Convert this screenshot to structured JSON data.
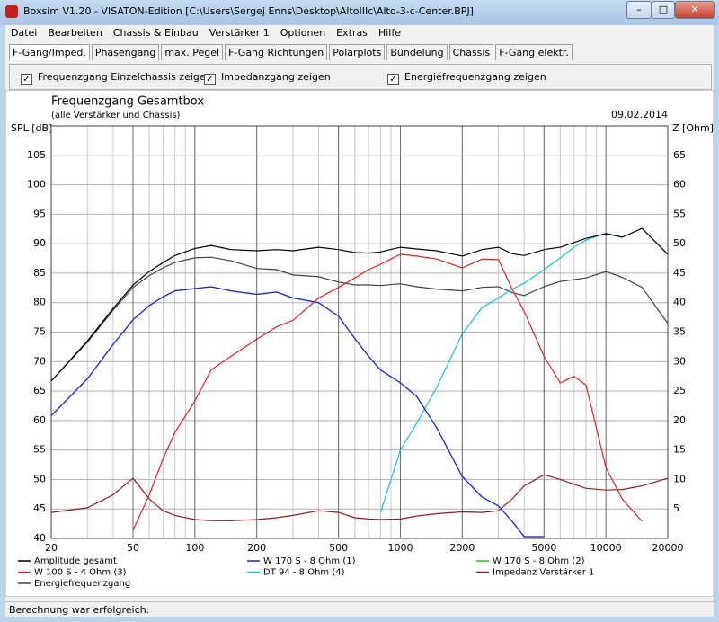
{
  "window": {
    "title": "Boxsim V1.20 - VISATON-Edition [C:\\Users\\Sergej Enns\\Desktop\\AltoIIIc\\Alto-3-c-Center.BPJ]"
  },
  "menu": [
    "Datei",
    "Bearbeiten",
    "Chassis & Einbau",
    "Verstärker 1",
    "Optionen",
    "Extras",
    "Hilfe"
  ],
  "tabs": [
    "F-Gang/Imped.",
    "Phasengang",
    "max. Pegel",
    "F-Gang Richtungen",
    "Polarplots",
    "Bündelung",
    "Chassis",
    "F-Gang elektr."
  ],
  "options": [
    "Frequenzgang Einzelchassis zeigen",
    "Impedanzgang zeigen",
    "Energiefrequenzgang zeigen"
  ],
  "status": "Berechnung war erfolgreich.",
  "chart_data": {
    "type": "line",
    "title": "Frequenzgang Gesamtbox",
    "subtitle": "(alle Verstärker und Chassis)",
    "date": "09.02.2014",
    "ylabel": "SPL [dB]",
    "y2label": "Z [Ohm]",
    "log_x": true,
    "grid": true,
    "x": [
      20,
      30,
      40,
      50,
      60,
      70,
      80,
      100,
      120,
      150,
      200,
      250,
      300,
      400,
      500,
      600,
      700,
      800,
      1000,
      1200,
      1500,
      2000,
      2500,
      3000,
      3500,
      4000,
      5000,
      6000,
      7000,
      8000,
      10000,
      12000,
      15000,
      20000
    ],
    "xlim": [
      20,
      20000
    ],
    "xticks": [
      20,
      50,
      100,
      200,
      500,
      1000,
      2000,
      5000,
      10000,
      20000
    ],
    "ylim": [
      40,
      110
    ],
    "yticks": [
      40,
      45,
      50,
      55,
      60,
      65,
      70,
      75,
      80,
      85,
      90,
      95,
      100,
      105
    ],
    "y2lim": [
      0,
      70
    ],
    "y2ticks": [
      5,
      10,
      15,
      20,
      25,
      30,
      35,
      40,
      45,
      50,
      55,
      60,
      65
    ],
    "series": [
      {
        "name": "Amplitude gesamt",
        "color": "#000000",
        "values": [
          66.7,
          73.5,
          79,
          83,
          85.3,
          86.8,
          88,
          89.2,
          89.7,
          89,
          88.8,
          89,
          88.8,
          89.4,
          89,
          88.5,
          88.4,
          88.6,
          89.4,
          89.1,
          88.8,
          87.9,
          89,
          89.4,
          88.3,
          88,
          89,
          89.4,
          90.2,
          90.9,
          91.7,
          91.1,
          92.6,
          88.2
        ]
      },
      {
        "name": "W 170 S - 8 Ohm (1)",
        "color": "#2020e0",
        "values": [
          60.8,
          67.1,
          72.9,
          77.1,
          79.5,
          81,
          82,
          82.4,
          82.7,
          82,
          81.4,
          81.8,
          80.8,
          80,
          77.7,
          73.9,
          70.9,
          68.6,
          66.4,
          64.1,
          58.8,
          50.5,
          47,
          45.5,
          42.9,
          40.3,
          40.3,
          null,
          null,
          null,
          null,
          null,
          null,
          null
        ]
      },
      {
        "name": "W 170 S - 8 Ohm (2)",
        "color": "#20c020",
        "values": [
          60.8,
          67.1,
          72.9,
          77.1,
          79.5,
          81,
          82,
          82.4,
          82.7,
          82,
          81.4,
          81.8,
          80.8,
          80,
          77.7,
          73.9,
          70.9,
          68.6,
          66.4,
          64.1,
          58.8,
          50.5,
          47,
          45.5,
          42.9,
          40.3,
          40.3,
          null,
          null,
          null,
          null,
          null,
          null,
          null
        ]
      },
      {
        "name": "W 100 S - 4 Ohm (3)",
        "color": "#e02020",
        "values": [
          null,
          null,
          null,
          41.4,
          47.4,
          53.5,
          58,
          63.3,
          68.6,
          70.9,
          73.8,
          75.9,
          77,
          80.8,
          82.6,
          84.2,
          85.6,
          86.5,
          88.2,
          87.9,
          87.4,
          85.9,
          87.4,
          87.3,
          82.3,
          78.5,
          70.9,
          66.4,
          67.5,
          66,
          52,
          46.7,
          42.9,
          null
        ]
      },
      {
        "name": "DT 94 - 8 Ohm (4)",
        "color": "#20c0d0",
        "values": [
          null,
          null,
          null,
          null,
          null,
          null,
          null,
          null,
          null,
          null,
          null,
          null,
          null,
          null,
          null,
          null,
          null,
          44.4,
          55,
          59.5,
          65.6,
          74.7,
          79.2,
          80.8,
          82.3,
          83.3,
          85.6,
          87.6,
          89.4,
          90.6,
          91.8,
          91.1,
          null,
          null
        ]
      },
      {
        "name": "Impedanz Verstärker 1",
        "color": "#8b2020",
        "axis": "y2",
        "values": [
          4.4,
          5.2,
          7.4,
          10.2,
          6.7,
          4.7,
          3.9,
          3.2,
          3,
          3,
          3.2,
          3.5,
          3.9,
          4.7,
          4.4,
          3.5,
          3.3,
          3.2,
          3.3,
          3.8,
          4.2,
          4.5,
          4.4,
          4.7,
          6.7,
          8.9,
          10.8,
          10,
          9.2,
          8.5,
          8.2,
          8.3,
          8.9,
          10.2
        ]
      },
      {
        "name": "Energiefrequenzgang",
        "color": "#404040",
        "values": [
          66.7,
          73.3,
          78.7,
          82.6,
          84.6,
          85.9,
          86.8,
          87.6,
          87.7,
          87.1,
          85.8,
          85.6,
          84.7,
          84.4,
          83.5,
          83,
          83,
          82.9,
          83.2,
          82.7,
          82.3,
          82,
          82.6,
          82.7,
          81.7,
          81.2,
          82.7,
          83.6,
          83.9,
          84.2,
          85.3,
          84.3,
          82.6,
          76.5
        ]
      }
    ]
  }
}
